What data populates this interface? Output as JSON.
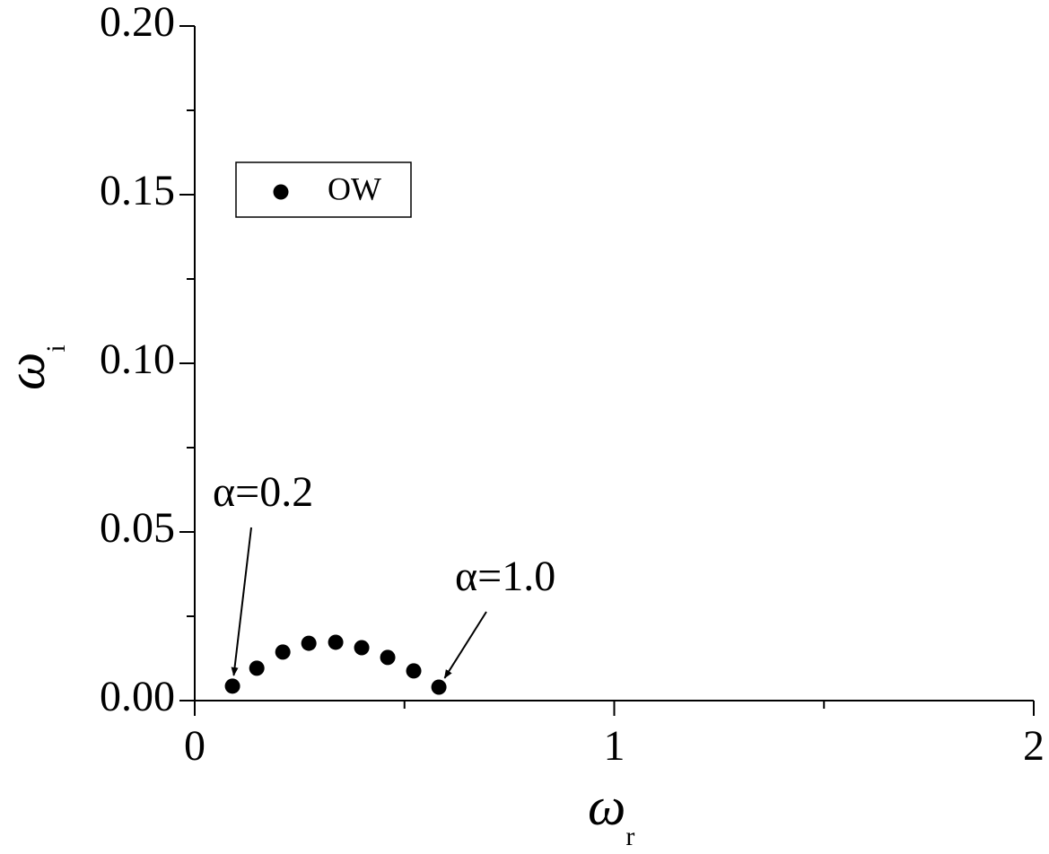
{
  "chart_data": {
    "type": "scatter",
    "xlabel": {
      "symbol": "ω",
      "subscript": "r"
    },
    "ylabel": {
      "symbol": "ω",
      "subscript": "i"
    },
    "series": [
      {
        "name": "OW",
        "color": "#000000",
        "x": [
          0.09,
          0.148,
          0.21,
          0.272,
          0.336,
          0.398,
          0.46,
          0.522,
          0.582
        ],
        "values": [
          0.0043,
          0.0096,
          0.0144,
          0.017,
          0.0173,
          0.0157,
          0.0128,
          0.0088,
          0.004
        ]
      }
    ],
    "annotations": [
      "α=0.2",
      "α=1.0"
    ],
    "xlim": [
      0,
      2
    ],
    "xticks": [
      0,
      1,
      2
    ],
    "ylim": [
      0,
      0.2
    ],
    "yticks": [
      {
        "value": 0,
        "label": "0.00"
      },
      {
        "value": 0.05,
        "label": "0.05"
      },
      {
        "value": 0.1,
        "label": "0.10"
      },
      {
        "value": 0.15,
        "label": "0.15"
      },
      {
        "value": 0.2,
        "label": "0.20"
      }
    ],
    "legend": "upper left",
    "grid": false
  }
}
